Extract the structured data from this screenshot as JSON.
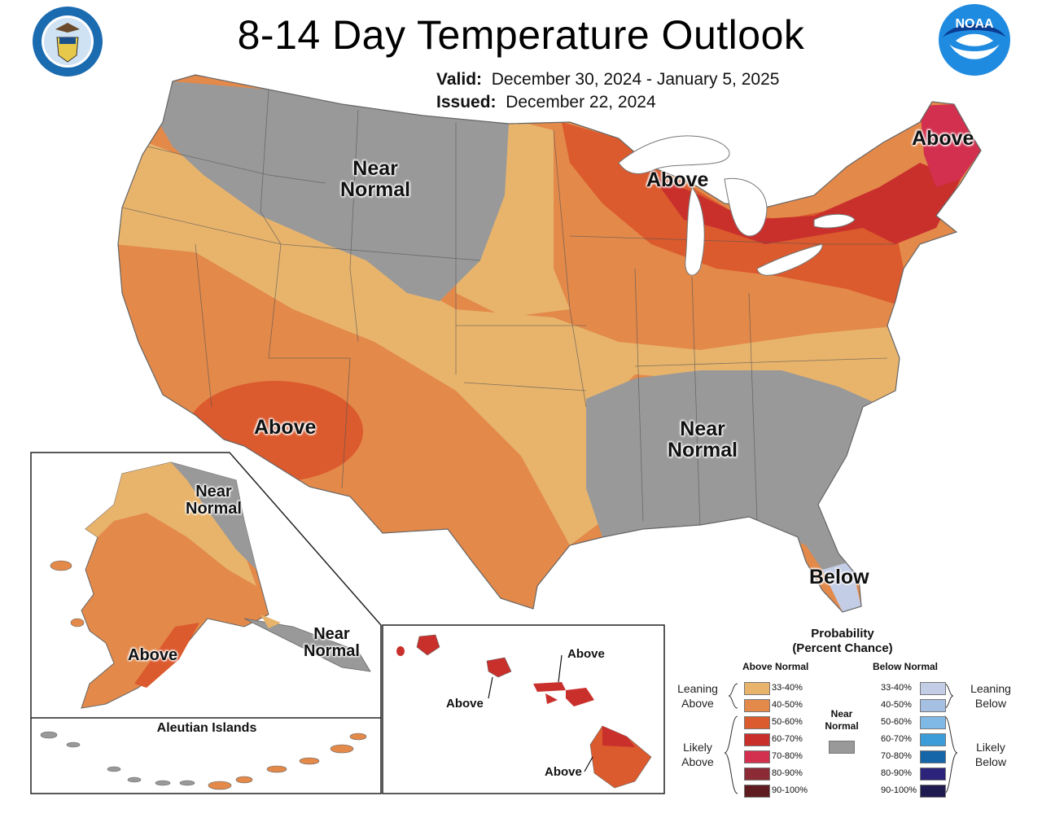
{
  "title": "8-14 Day Temperature Outlook",
  "valid_label": "Valid:",
  "valid_value": "December 30, 2024 - January 5, 2025",
  "issued_label": "Issued:",
  "issued_value": "December 22, 2024",
  "logos": {
    "left": "Department of Commerce seal",
    "right": "NOAA logo"
  },
  "map_labels": {
    "nw_near_1": "Near",
    "nw_near_2": "Normal",
    "great_lakes_above": "Above",
    "ne_above": "Above",
    "sw_above": "Above",
    "se_near_1": "Near",
    "se_near_2": "Normal",
    "fl_below": "Below",
    "ak_near_1": "Near",
    "ak_near_2": "Normal",
    "ak_se_near_1": "Near",
    "ak_se_near_2": "Normal",
    "ak_above": "Above",
    "hi_above_1": "Above",
    "hi_above_2": "Above",
    "hi_above_3": "Above"
  },
  "aleutian_title": "Aleutian Islands",
  "legend": {
    "title_1": "Probability",
    "title_2": "(Percent Chance)",
    "above_header": "Above Normal",
    "below_header": "Below Normal",
    "near_header_1": "Near",
    "near_header_2": "Normal",
    "near_color": "#999999",
    "leaning_above_1": "Leaning",
    "leaning_above_2": "Above",
    "likely_above_1": "Likely",
    "likely_above_2": "Above",
    "leaning_below_1": "Leaning",
    "leaning_below_2": "Below",
    "likely_below_1": "Likely",
    "likely_below_2": "Below",
    "above_bins": [
      {
        "label": "33-40%",
        "color": "#e8b46c"
      },
      {
        "label": "40-50%",
        "color": "#e3894a"
      },
      {
        "label": "50-60%",
        "color": "#db5a2e"
      },
      {
        "label": "60-70%",
        "color": "#c9302c"
      },
      {
        "label": "70-80%",
        "color": "#d2304e"
      },
      {
        "label": "80-90%",
        "color": "#8c2a35"
      },
      {
        "label": "90-100%",
        "color": "#5e1c20"
      }
    ],
    "below_bins": [
      {
        "label": "33-40%",
        "color": "#c3cde6"
      },
      {
        "label": "40-50%",
        "color": "#a6c0e3"
      },
      {
        "label": "50-60%",
        "color": "#80b9e6"
      },
      {
        "label": "60-70%",
        "color": "#3b9cd9"
      },
      {
        "label": "70-80%",
        "color": "#1565a9"
      },
      {
        "label": "80-90%",
        "color": "#2c247a"
      },
      {
        "label": "90-100%",
        "color": "#1f1a4f"
      }
    ]
  }
}
